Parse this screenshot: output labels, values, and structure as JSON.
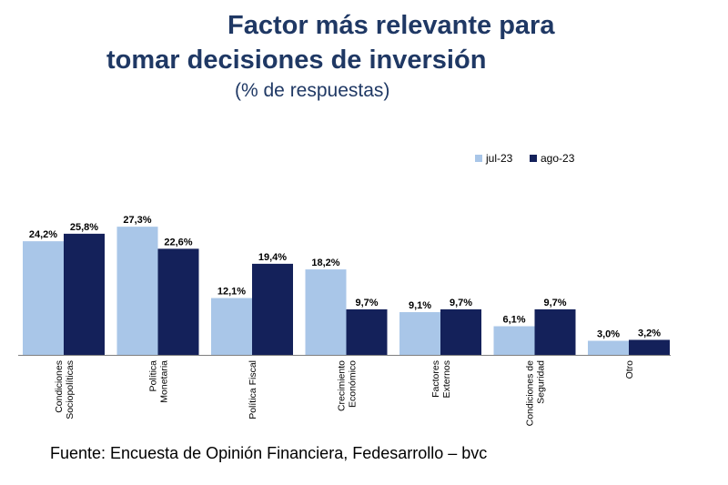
{
  "title_line1": "Factor más relevante para",
  "title_line2": "tomar decisiones de inversión",
  "subtitle": "(% de respuestas)",
  "source": "Fuente: Encuesta de Opinión Financiera, Fedesarrollo – bvc",
  "colors": {
    "jul": "#a9c6e8",
    "ago": "#14215a",
    "title": "#1f3864"
  },
  "chart_data": {
    "type": "bar",
    "title": "Factor más relevante para tomar decisiones de inversión",
    "subtitle": "(% de respuestas)",
    "categories": [
      [
        "Condiciones",
        "Sociopolíticas"
      ],
      [
        "Política",
        "Monetaria"
      ],
      [
        "Política Fiscal"
      ],
      [
        "Crecimiento",
        "Económico"
      ],
      [
        "Factores",
        "Externos"
      ],
      [
        "Condiciones de",
        "Seguridad"
      ],
      [
        "Otro"
      ]
    ],
    "series": [
      {
        "name": "jul-23",
        "values": [
          24.2,
          27.3,
          12.1,
          18.2,
          9.1,
          6.1,
          3.0
        ],
        "labels": [
          "24,2%",
          "27,3%",
          "12,1%",
          "18,2%",
          "9,1%",
          "6,1%",
          "3,0%"
        ]
      },
      {
        "name": "ago-23",
        "values": [
          25.8,
          22.6,
          19.4,
          9.7,
          9.7,
          9.7,
          3.2
        ],
        "labels": [
          "25,8%",
          "22,6%",
          "19,4%",
          "9,7%",
          "9,7%",
          "9,7%",
          "3,2%"
        ]
      }
    ],
    "legend": [
      "jul-23",
      "ago-23"
    ],
    "legend_position": "top-right",
    "ylim": [
      0,
      30
    ],
    "grid": false
  }
}
